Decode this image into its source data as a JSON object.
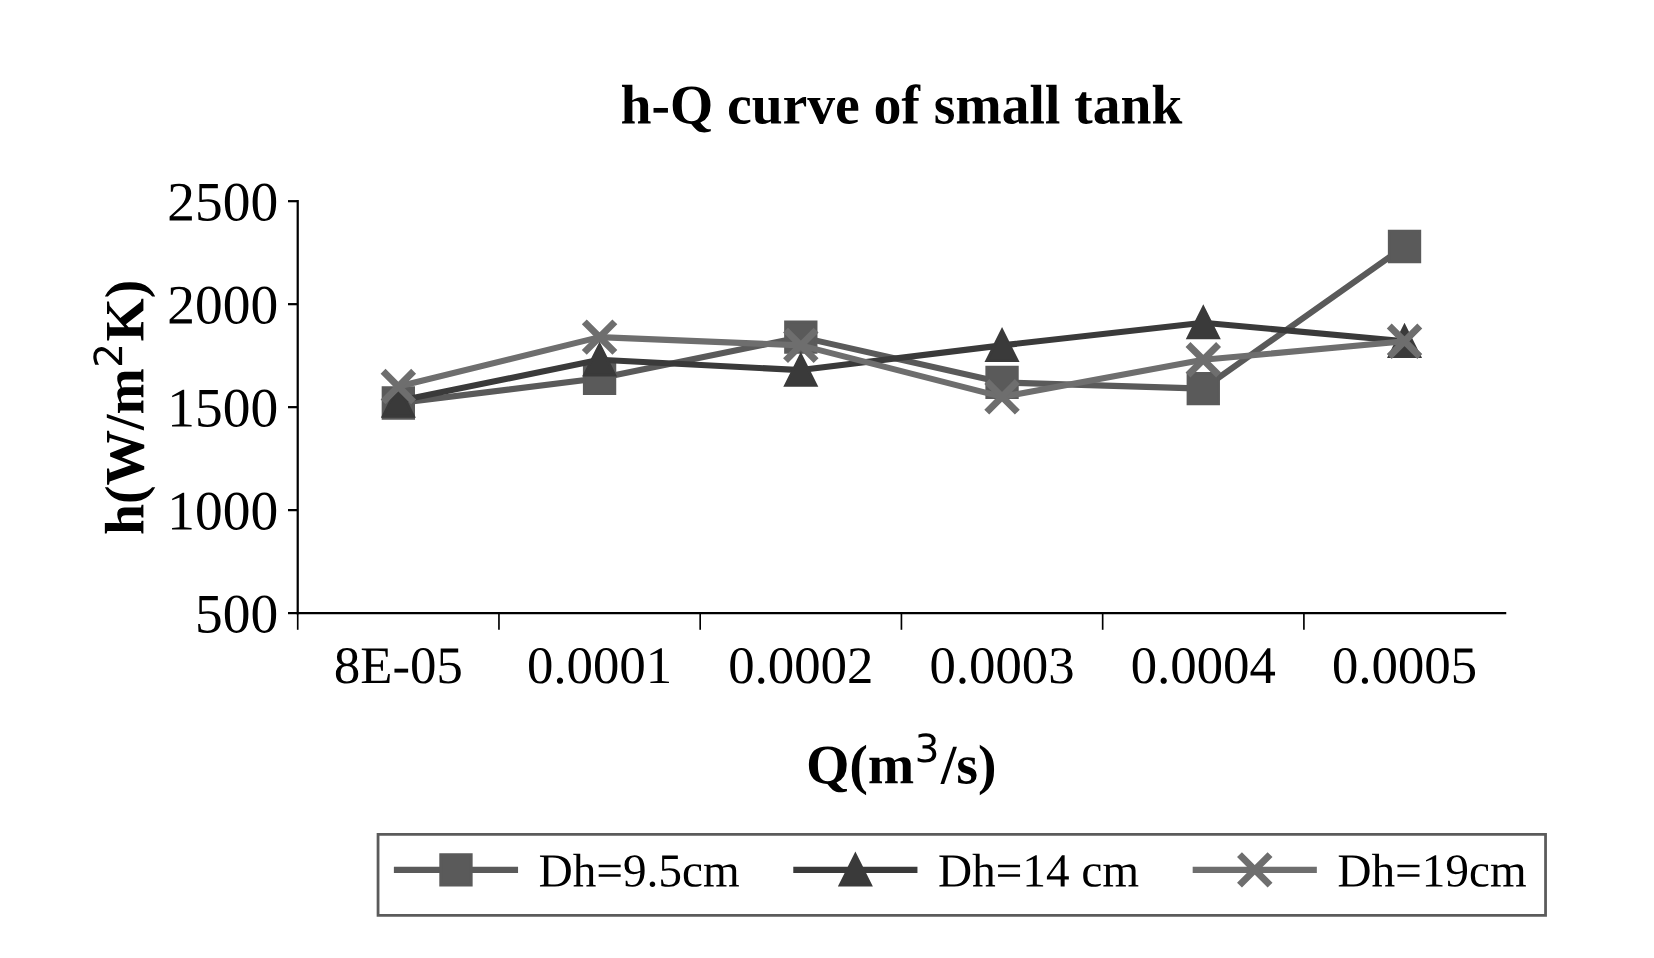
{
  "chart_data": {
    "type": "line",
    "title": "h-Q curve of small tank",
    "xlabel": "Q(m$^{3}$/s)",
    "ylabel": "h(W/m$^{2}$K)",
    "categories": [
      "8E-05",
      "0.0001",
      "0.0002",
      "0.0003",
      "0.0004",
      "0.0005"
    ],
    "ylim": [
      500,
      2500
    ],
    "yticks": [
      500,
      1000,
      1500,
      2000,
      2500
    ],
    "grid": false,
    "legend": "bottom",
    "series": [
      {
        "name": "Dh=9.5cm",
        "color": "#5a5a5a",
        "marker": "square",
        "values": [
          1520,
          1640,
          1840,
          1620,
          1590,
          2280
        ]
      },
      {
        "name": "Dh=14 cm",
        "color": "#3a3a3a",
        "marker": "triangle",
        "values": [
          1530,
          1730,
          1680,
          1800,
          1910,
          1820
        ]
      },
      {
        "name": "Dh=19cm",
        "color": "#6e6e6e",
        "marker": "cross",
        "values": [
          1600,
          1840,
          1800,
          1550,
          1730,
          1820
        ]
      }
    ]
  }
}
